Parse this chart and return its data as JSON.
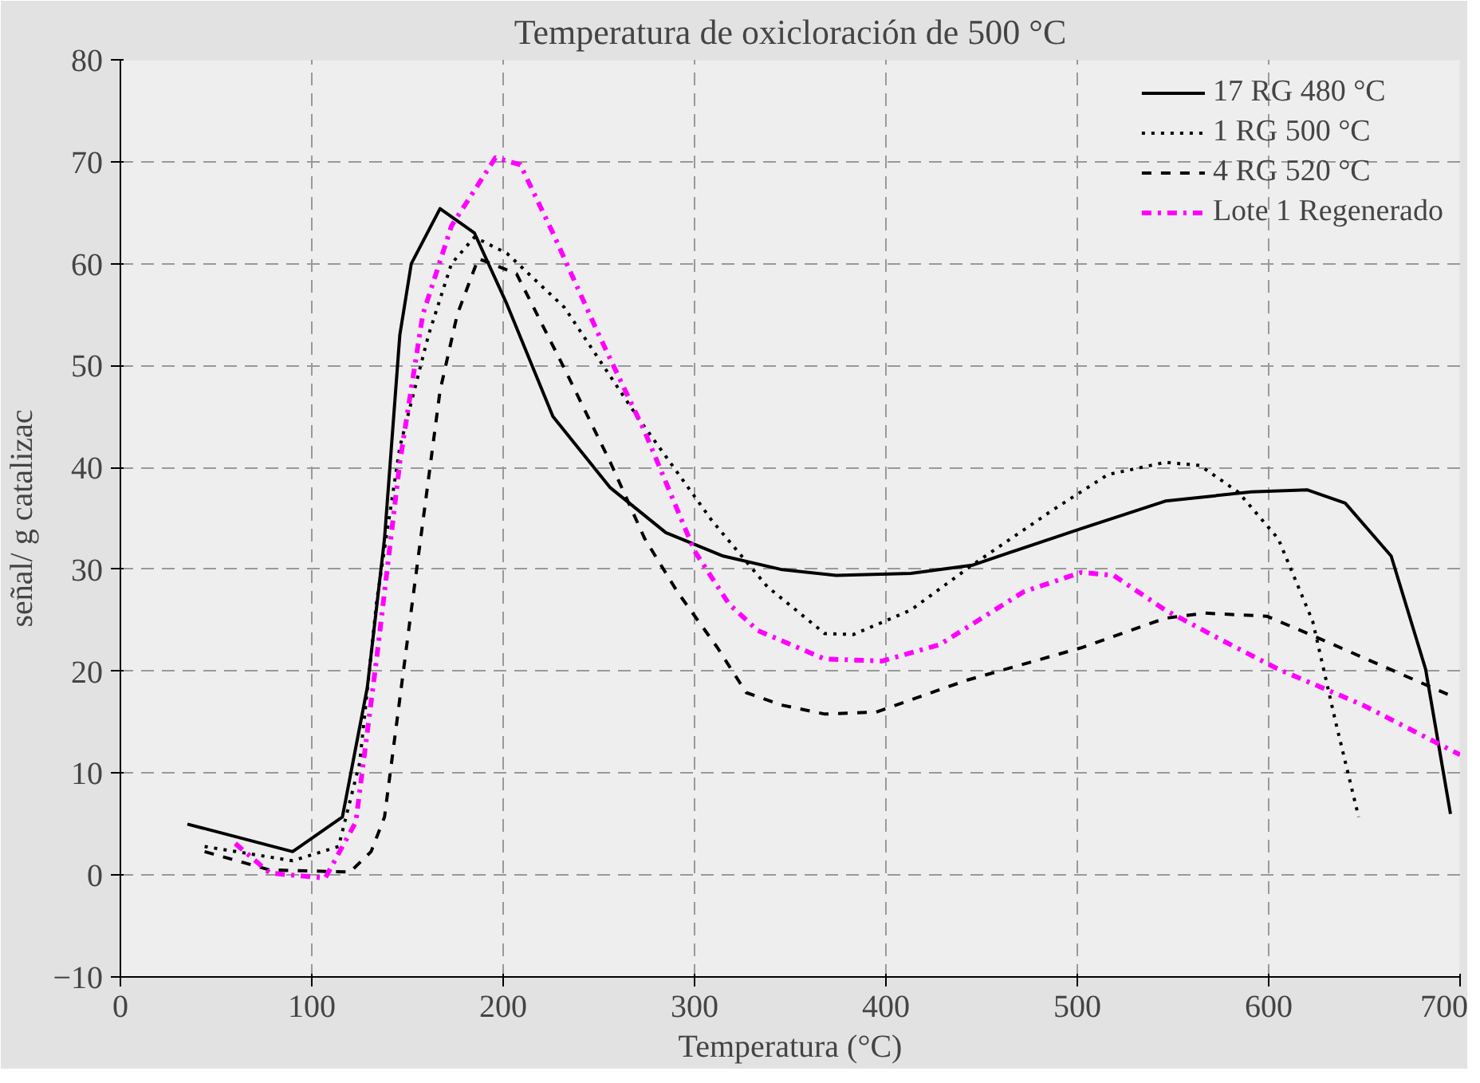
{
  "chart_data": {
    "type": "line",
    "title": "Temperatura de oxicloración de 500 °C",
    "xlabel": "Temperatura (°C)",
    "ylabel": "señal/ g catalizac",
    "xlim": [
      0,
      700
    ],
    "ylim": [
      -10,
      80
    ],
    "xticks": [
      0,
      100,
      200,
      300,
      400,
      500,
      600,
      700
    ],
    "yticks": [
      -10,
      0,
      10,
      20,
      30,
      40,
      50,
      60,
      70,
      80
    ],
    "grid": true,
    "legend": "top right",
    "marker": "none",
    "series": [
      {
        "name": "17 RG 480 °C",
        "color": "#000000",
        "line_style": "solid",
        "x": [
          35,
          90,
          116,
          129,
          138,
          146,
          152,
          167,
          185,
          202,
          226,
          256,
          285,
          315,
          345,
          374,
          413,
          445,
          502,
          546,
          591,
          620,
          640,
          664,
          682,
          695
        ],
        "values": [
          5,
          2.3,
          5.7,
          18.4,
          33,
          53,
          60,
          65.4,
          63,
          56,
          45,
          38,
          33.6,
          31.3,
          30,
          29.4,
          29.6,
          30.4,
          34,
          36.7,
          37.6,
          37.8,
          36.5,
          31.3,
          20.2,
          6
        ]
      },
      {
        "name": "1 RG 500 °C",
        "color": "#000000",
        "line_style": "dotted",
        "x": [
          44,
          90,
          114,
          125,
          134,
          146,
          161,
          173,
          185,
          202,
          232,
          270,
          309,
          338,
          368,
          383,
          413,
          445,
          487,
          516,
          546,
          564,
          584,
          605,
          623,
          635,
          647
        ],
        "values": [
          2.8,
          1.4,
          2.8,
          11,
          27,
          42,
          53,
          60,
          62.6,
          61,
          55.7,
          45,
          34.8,
          28.3,
          23.7,
          23.6,
          26,
          30.4,
          35.8,
          39.3,
          40.5,
          40.2,
          37.6,
          33,
          24.9,
          15,
          5.7
        ]
      },
      {
        "name": "4 RG 520 °C",
        "color": "#000000",
        "line_style": "dashed",
        "x": [
          44,
          78,
          120,
          131,
          138,
          152,
          167,
          176,
          187,
          207,
          232,
          256,
          274,
          291,
          312,
          327,
          345,
          368,
          395,
          442,
          502,
          546,
          567,
          599,
          623,
          651,
          694
        ],
        "values": [
          2.3,
          0.5,
          0.3,
          2.3,
          5.7,
          26,
          47.5,
          55,
          60.5,
          59,
          49.7,
          40.5,
          33,
          27.8,
          22.3,
          17.9,
          16.7,
          15.8,
          16,
          19.1,
          22.3,
          25.2,
          25.7,
          25.4,
          23.5,
          21.2,
          17.7
        ]
      },
      {
        "name": "Lote 1 Regenerado",
        "color": "#ff00ff",
        "line_style": "dashdot",
        "x": [
          60,
          78,
          107,
          123,
          134,
          146,
          158,
          173,
          196,
          209,
          226,
          250,
          274,
          300,
          318,
          333,
          368,
          398,
          428,
          472,
          502,
          519,
          546,
          575,
          605,
          649,
          700
        ],
        "values": [
          3.1,
          0.2,
          -0.3,
          5.2,
          21.4,
          40.5,
          55,
          63.7,
          70.4,
          69.7,
          63,
          53,
          43.5,
          31.8,
          26.6,
          24,
          21.2,
          21,
          22.6,
          27.8,
          29.7,
          29.4,
          26,
          23.1,
          20.2,
          16.7,
          11.8
        ]
      }
    ]
  }
}
